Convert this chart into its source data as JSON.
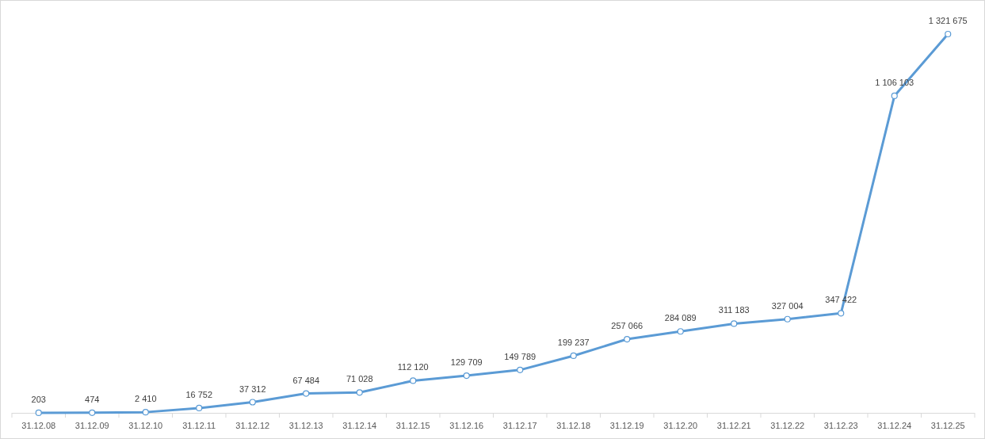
{
  "chart_data": {
    "type": "line",
    "categories": [
      "31.12.08",
      "31.12.09",
      "31.12.10",
      "31.12.11",
      "31.12.12",
      "31.12.13",
      "31.12.14",
      "31.12.15",
      "31.12.16",
      "31.12.17",
      "31.12.18",
      "31.12.19",
      "31.12.20",
      "31.12.21",
      "31.12.22",
      "31.12.23",
      "31.12.24",
      "31.12.25"
    ],
    "series": [
      {
        "color": "#5b9bd5",
        "values": [
          203,
          474,
          2410,
          16752,
          37312,
          67484,
          71028,
          112120,
          129709,
          149789,
          199237,
          257066,
          284089,
          311183,
          327004,
          347422,
          1106103,
          1321675
        ]
      }
    ],
    "data_labels": true,
    "marker": "circle",
    "line_style": "solid"
  }
}
